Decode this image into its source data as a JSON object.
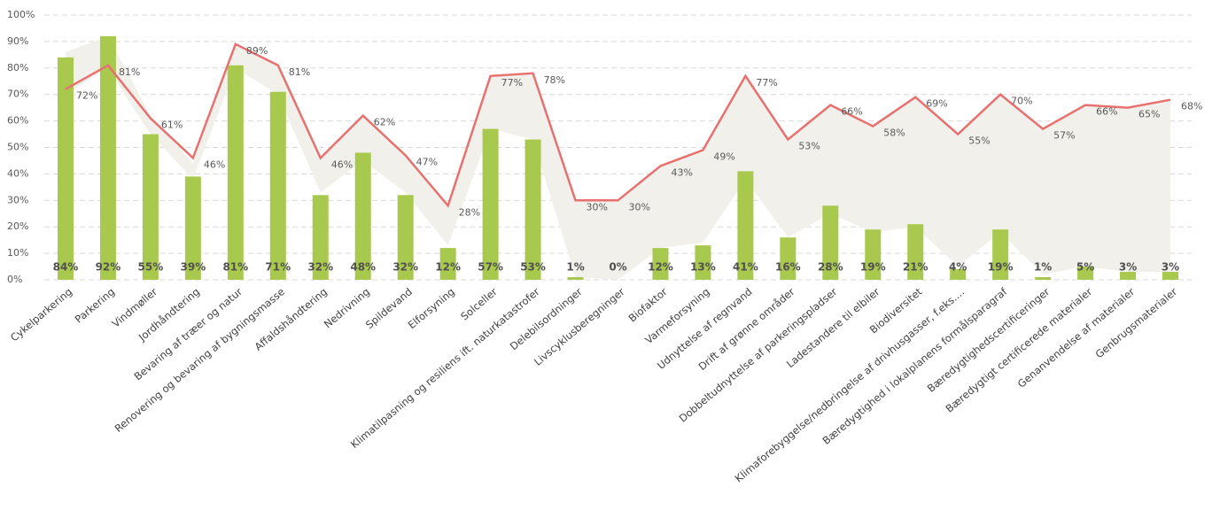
{
  "chart_data": {
    "type": "bar-line",
    "categories": [
      "Cykelparkering",
      "Parkering",
      "Vindmøller",
      "Jordhåndtering",
      "Bevaring af træer og natur",
      "Renovering og bevaring af bygningsmasse",
      "Affaldshåndtering",
      "Nedrivning",
      "Spildevand",
      "Elforsyning",
      "Solceller",
      "Klimatilpasning og resiliens ift. naturkatastrofer",
      "Delebilsordninger",
      "Livscyklusberegninger",
      "Biofaktor",
      "Varmeforsyning",
      "Udnyttelse af regnvand",
      "Drift af grønne områder",
      "Dobbeltudnyttelse af parkeringspladser",
      "Ladestandere til elbiler",
      "Biodiversitet",
      "Klimaforebyggelse/nedbringelse af drivhusgasser, f.eks.…",
      "Bæredygtighed i lokalplanens formålsparagraf",
      "Bæredygtighedscertificeringer",
      "Bæredygtigt certificerede materialer",
      "Genanvendelse af materialer",
      "Genbrugsmaterialer"
    ],
    "bars": {
      "color": "#a9c84e",
      "values": [
        84,
        92,
        55,
        39,
        81,
        71,
        32,
        48,
        32,
        12,
        57,
        53,
        1,
        0,
        12,
        13,
        41,
        16,
        28,
        19,
        21,
        4,
        19,
        1,
        5,
        3,
        3
      ],
      "value_labels": [
        "84%",
        "92%",
        "55%",
        "39%",
        "81%",
        "71%",
        "32%",
        "48%",
        "32%",
        "12%",
        "57%",
        "53%",
        "1%",
        "0%",
        "12%",
        "13%",
        "41%",
        "16%",
        "28%",
        "19%",
        "21%",
        "4%",
        "19%",
        "1%",
        "5%",
        "3%",
        "3%"
      ]
    },
    "line": {
      "color": "#e8706f",
      "values": [
        72,
        81,
        61,
        46,
        89,
        81,
        46,
        62,
        47,
        28,
        77,
        78,
        30,
        30,
        43,
        49,
        77,
        53,
        66,
        58,
        69,
        55,
        70,
        57,
        66,
        65,
        68
      ],
      "value_labels": [
        "72%",
        "81%",
        "61%",
        "46%",
        "89%",
        "81%",
        "46%",
        "62%",
        "47%",
        "28%",
        "77%",
        "78%",
        "30%",
        "30%",
        "43%",
        "49%",
        "77%",
        "53%",
        "66%",
        "58%",
        "69%",
        "55%",
        "70%",
        "57%",
        "66%",
        "65%",
        "68%"
      ]
    },
    "area": {
      "color": "#f1f0ea",
      "upper": [
        86,
        92,
        62,
        44,
        88,
        82,
        46,
        62,
        47,
        28,
        77,
        78,
        30,
        30,
        43,
        49,
        77,
        53,
        66,
        58,
        69,
        55,
        70,
        57,
        66,
        65,
        68
      ],
      "lower": [
        70,
        80,
        55,
        38,
        80,
        70,
        33,
        45,
        33,
        13,
        57,
        53,
        1,
        0,
        12,
        14,
        38,
        16,
        25,
        18,
        20,
        5,
        18,
        2,
        5,
        3,
        3
      ]
    },
    "ylim": [
      0,
      100
    ],
    "yticks": [
      {
        "value": 0,
        "label": "0%"
      },
      {
        "value": 10,
        "label": "10%"
      },
      {
        "value": 20,
        "label": "20%"
      },
      {
        "value": 30,
        "label": "30%"
      },
      {
        "value": 40,
        "label": "40%"
      },
      {
        "value": 50,
        "label": "50%"
      },
      {
        "value": 60,
        "label": "60%"
      },
      {
        "value": 70,
        "label": "70%"
      },
      {
        "value": 80,
        "label": "80%"
      },
      {
        "value": 90,
        "label": "90%"
      },
      {
        "value": 100,
        "label": "100%"
      }
    ],
    "grid": true
  }
}
